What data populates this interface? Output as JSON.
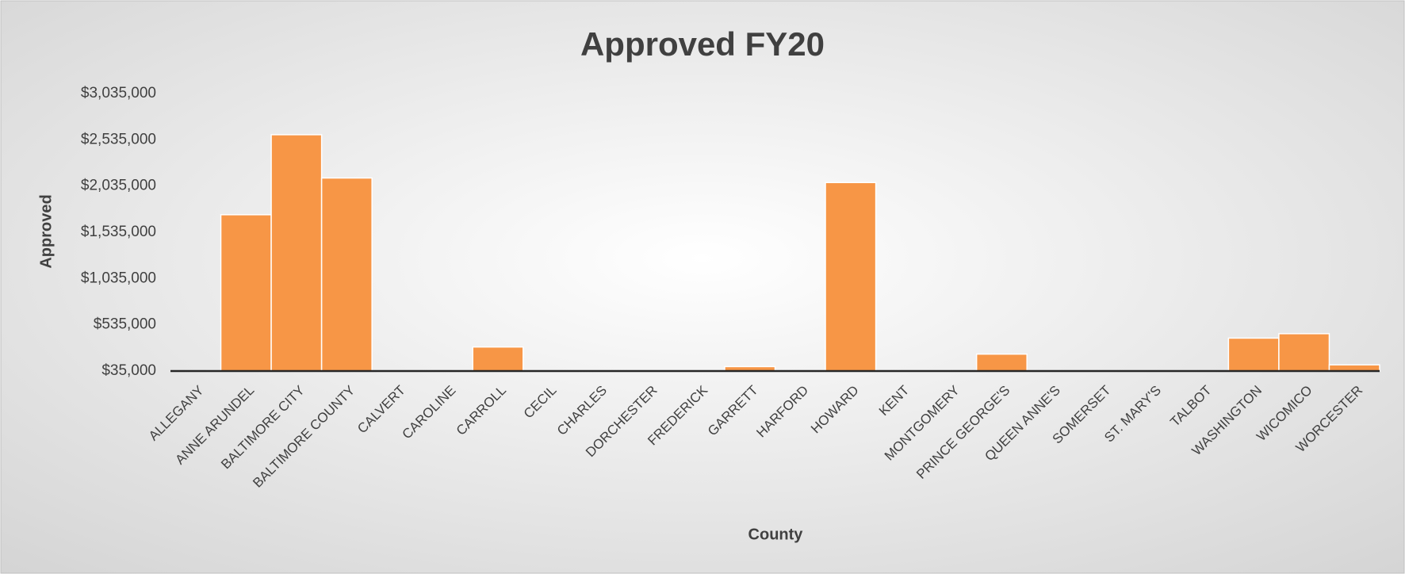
{
  "chart_data": {
    "type": "bar",
    "title": "Approved FY20",
    "x_label": "County",
    "y_label": "Approved",
    "categories": [
      "ALLEGANY",
      "ANNE ARUNDEL",
      "BALTIMORE CITY",
      "BALTIMORE COUNTY",
      "CALVERT",
      "CAROLINE",
      "CARROLL",
      "CECIL",
      "CHARLES",
      "DORCHESTER",
      "FREDERICK",
      "GARRETT",
      "HARFORD",
      "HOWARD",
      "KENT",
      "MONTGOMERY",
      "PRINCE GEORGE'S",
      "QUEEN ANNE'S",
      "SOMERSET",
      "ST. MARY'S",
      "TALBOT",
      "WASHINGTON",
      "WICOMICO",
      "WORCESTER"
    ],
    "values": [
      0,
      1725000,
      2590000,
      2122000,
      0,
      0,
      295000,
      0,
      0,
      0,
      0,
      83000,
      0,
      2073000,
      0,
      0,
      218000,
      0,
      0,
      0,
      0,
      391000,
      439000,
      102000
    ],
    "color": "#f79646",
    "ylim": [
      35000,
      3035000
    ],
    "yticks": [
      {
        "value": 35000,
        "label": "$35,000"
      },
      {
        "value": 535000,
        "label": "$535,000"
      },
      {
        "value": 1035000,
        "label": "$1,035,000"
      },
      {
        "value": 1535000,
        "label": "$1,535,000"
      },
      {
        "value": 2035000,
        "label": "$2,035,000"
      },
      {
        "value": 2535000,
        "label": "$2,535,000"
      },
      {
        "value": 3035000,
        "label": "$3,035,000"
      }
    ],
    "grid": false
  }
}
